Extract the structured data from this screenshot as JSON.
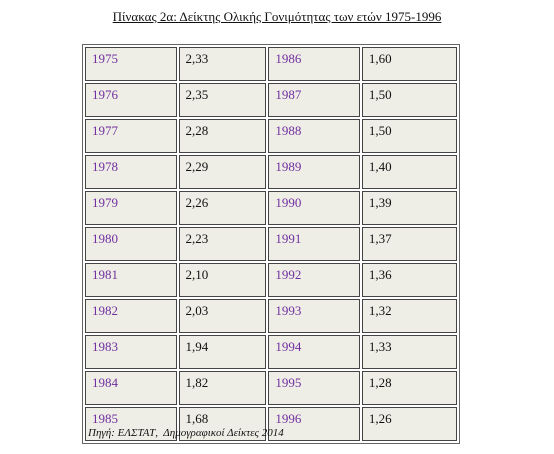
{
  "title": "Πίνακας 2α: Δείκτης Ολικής Γονιμότητας των ετών 1975-1996",
  "table": {
    "rows": [
      [
        "1975",
        "2,33",
        "1986",
        "1,60"
      ],
      [
        "1976",
        "2,35",
        "1987",
        "1,50"
      ],
      [
        "1977",
        "2,28",
        "1988",
        "1,50"
      ],
      [
        "1978",
        "2,29",
        "1989",
        "1,40"
      ],
      [
        "1979",
        "2,26",
        "1990",
        "1,39"
      ],
      [
        "1980",
        "2,23",
        "1991",
        "1,37"
      ],
      [
        "1981",
        "2,10",
        "1992",
        "1,36"
      ],
      [
        "1982",
        "2,03",
        "1993",
        "1,32"
      ],
      [
        "1983",
        "1,94",
        "1994",
        "1,33"
      ],
      [
        "1984",
        "1,82",
        "1995",
        "1,28"
      ],
      [
        "1985",
        "1,68",
        "1996",
        "1,26"
      ]
    ]
  },
  "source": "Πηγή: ΕΛΣΤΑΤ,  Δημογραφικοί Δείκτες 2014"
}
